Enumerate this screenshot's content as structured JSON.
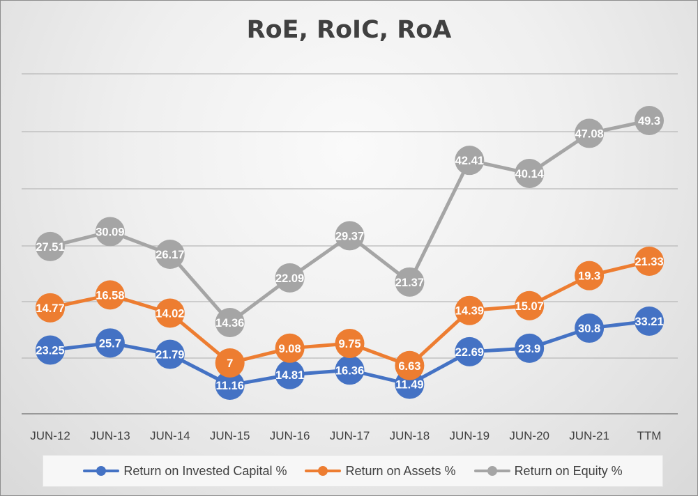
{
  "chart_data": {
    "type": "line",
    "title": "RoE, RoIC, RoA",
    "categories": [
      "JUN-12",
      "JUN-13",
      "JUN-14",
      "JUN-15",
      "JUN-16",
      "JUN-17",
      "JUN-18",
      "JUN-19",
      "JUN-20",
      "JUN-21",
      "TTM"
    ],
    "grid": true,
    "legend_position": "bottom",
    "series": [
      {
        "name": "Return on Invested Capital %",
        "color": "#4472c4",
        "values": [
          23.25,
          25.7,
          21.79,
          11.16,
          14.81,
          16.36,
          11.49,
          22.69,
          23.9,
          30.8,
          33.21
        ]
      },
      {
        "name": "Return on Assets %",
        "color": "#ed7d31",
        "values": [
          14.77,
          16.58,
          14.02,
          7,
          9.08,
          9.75,
          6.63,
          14.39,
          15.07,
          19.3,
          21.33
        ]
      },
      {
        "name": "Return on Equity %",
        "color": "#a5a5a5",
        "values": [
          27.51,
          30.09,
          26.17,
          14.36,
          22.09,
          29.37,
          21.37,
          42.41,
          40.14,
          47.08,
          49.3
        ]
      }
    ]
  }
}
